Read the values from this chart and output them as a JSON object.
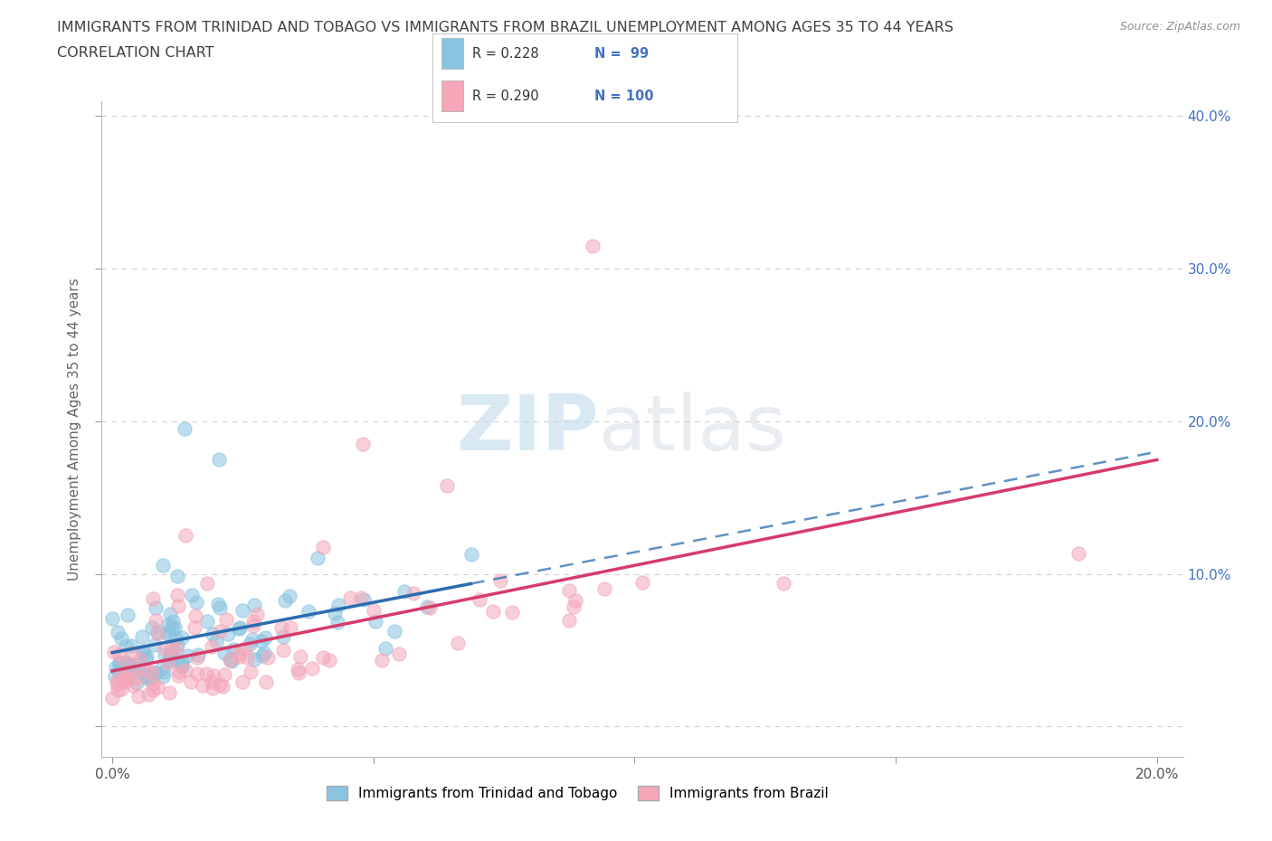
{
  "title_line1": "IMMIGRANTS FROM TRINIDAD AND TOBAGO VS IMMIGRANTS FROM BRAZIL UNEMPLOYMENT AMONG AGES 35 TO 44 YEARS",
  "title_line2": "CORRELATION CHART",
  "source_text": "Source: ZipAtlas.com",
  "ylabel": "Unemployment Among Ages 35 to 44 years",
  "xlim": [
    -0.002,
    0.205
  ],
  "ylim": [
    -0.02,
    0.41
  ],
  "xticks": [
    0.0,
    0.05,
    0.1,
    0.15,
    0.2
  ],
  "yticks": [
    0.0,
    0.1,
    0.2,
    0.3,
    0.4
  ],
  "xticklabels": [
    "0.0%",
    "",
    "",
    "",
    "20.0%"
  ],
  "yticklabels_right": [
    "10.0%",
    "20.0%",
    "30.0%",
    "40.0%"
  ],
  "color_tt": "#89c4e1",
  "color_br": "#f4a7b9",
  "trend_color_tt": "#2b6cb0",
  "trend_color_br": "#d63b6a",
  "trend_dash_color": "#89c4e1",
  "R_tt": 0.228,
  "N_tt": 99,
  "R_br": 0.29,
  "N_br": 100,
  "legend_label_tt": "Immigrants from Trinidad and Tobago",
  "legend_label_br": "Immigrants from Brazil",
  "watermark_zip": "ZIP",
  "watermark_atlas": "atlas",
  "background_color": "#ffffff",
  "grid_color": "#d0d0d0",
  "axis_color": "#4472c4",
  "title_color": "#404040",
  "source_color": "#909090",
  "scatter_alpha": 0.55,
  "scatter_size": 120,
  "scatter_lw": 1.0
}
